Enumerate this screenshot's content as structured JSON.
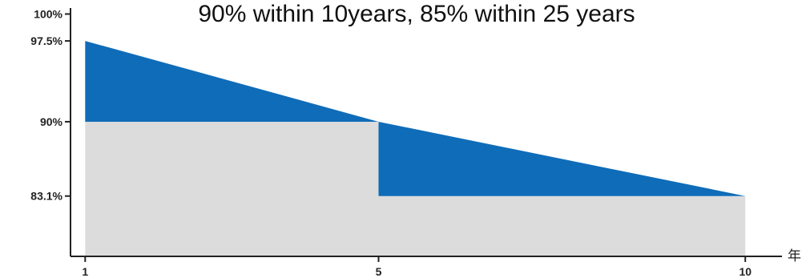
{
  "chart_data": {
    "type": "area",
    "title": "90% within 10years, 85% within 25 years",
    "xlabel": "年",
    "ylabel": "",
    "x_ticks": [
      {
        "value": 1,
        "label": "1"
      },
      {
        "value": 5,
        "label": "5"
      },
      {
        "value": 10,
        "label": "10"
      }
    ],
    "y_ticks": [
      {
        "value": 100,
        "label": "100%"
      },
      {
        "value": 97.5,
        "label": "97.5%"
      },
      {
        "value": 90,
        "label": "90%"
      },
      {
        "value": 83.1,
        "label": "83.1%"
      }
    ],
    "ylim": [
      77.5,
      100
    ],
    "xlim": [
      0.8,
      10.5
    ],
    "series": [
      {
        "role": "linear-degradation",
        "x": [
          1,
          5,
          10
        ],
        "y": [
          97.5,
          90,
          83.1
        ]
      },
      {
        "role": "guaranteed-step",
        "x": [
          1,
          5,
          5,
          10
        ],
        "y": [
          90,
          90,
          83.1,
          83.1
        ]
      }
    ],
    "colors": {
      "upper_area": "#0f6cb8",
      "lower_area": "#dcdcdc",
      "axis": "#222222"
    },
    "grid": false
  }
}
